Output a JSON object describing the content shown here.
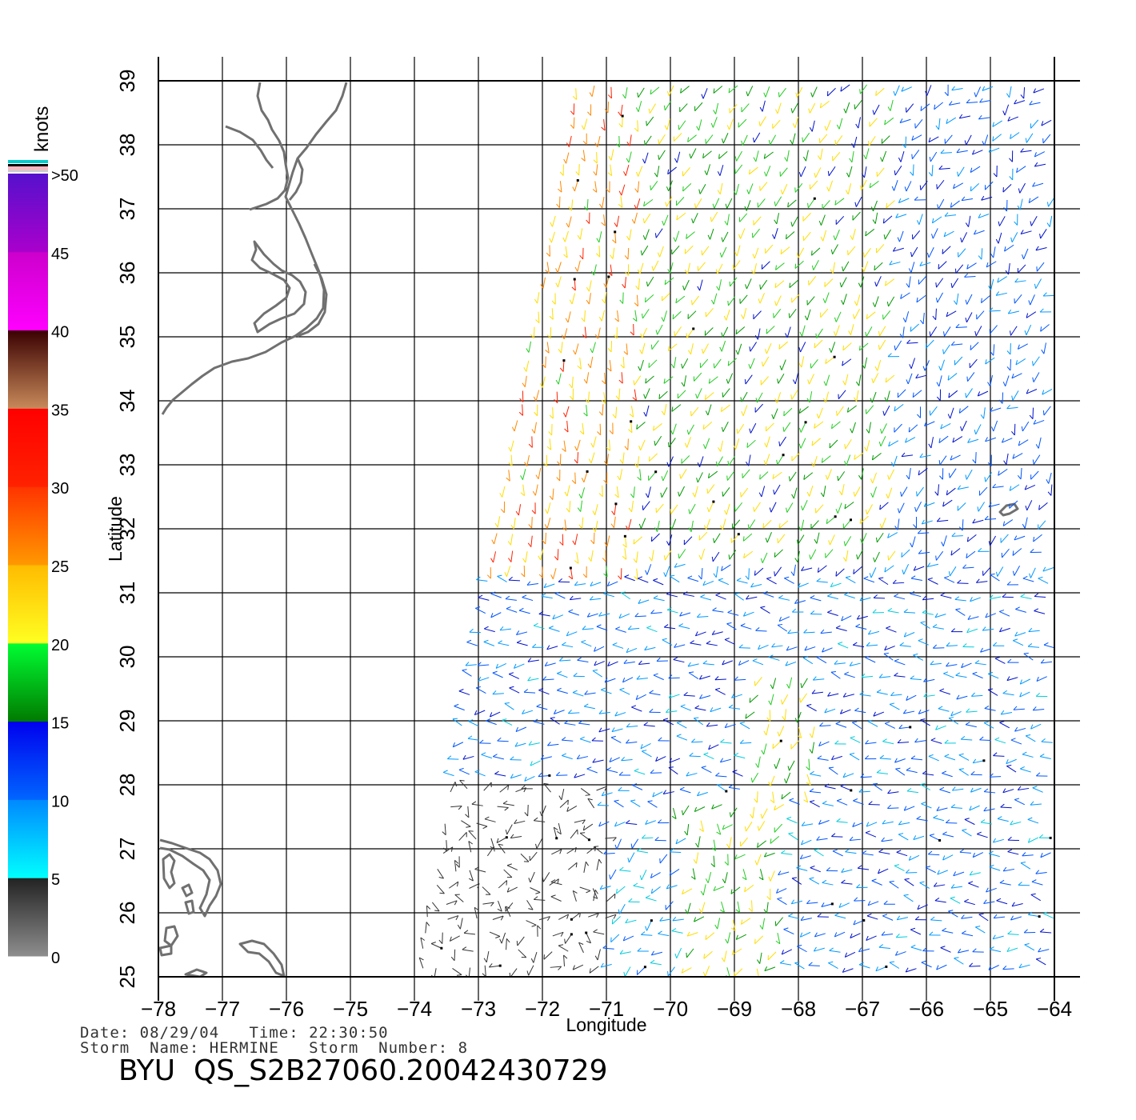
{
  "colorbar": {
    "unit_label": "knots",
    "segments": [
      {
        "min": 0,
        "max": 5,
        "colors": [
          "#8e8e8e",
          "#222222"
        ]
      },
      {
        "min": 5,
        "max": 10,
        "colors": [
          "#00ffff",
          "#0088ff"
        ]
      },
      {
        "min": 10,
        "max": 15,
        "colors": [
          "#0066ff",
          "#0000ee"
        ]
      },
      {
        "min": 15,
        "max": 20,
        "colors": [
          "#007a00",
          "#00ff33"
        ]
      },
      {
        "min": 20,
        "max": 25,
        "colors": [
          "#ffff22",
          "#ffbb00"
        ]
      },
      {
        "min": 25,
        "max": 30,
        "colors": [
          "#ff9900",
          "#ff3300"
        ]
      },
      {
        "min": 30,
        "max": 35,
        "colors": [
          "#ff2200",
          "#ff0000"
        ]
      },
      {
        "min": 35,
        "max": 40,
        "colors": [
          "#c88a5a",
          "#3a0000"
        ]
      },
      {
        "min": 40,
        "max": 45,
        "colors": [
          "#ff00ff",
          "#cc00cc"
        ]
      },
      {
        "min": 45,
        "max": 50,
        "colors": [
          "#aa00cc",
          "#5511cc"
        ]
      }
    ],
    "tick_labels": [
      "0",
      "5",
      "10",
      "15",
      "20",
      "25",
      "30",
      "35",
      "40",
      "45",
      ">50"
    ]
  },
  "map": {
    "lon_range": [
      -78,
      -64
    ],
    "lat_range": [
      25,
      39
    ],
    "lon_ticks": [
      "−78",
      "−77",
      "−76",
      "−75",
      "−74",
      "−73",
      "−72",
      "−71",
      "−70",
      "−69",
      "−68",
      "−67",
      "−66",
      "−65",
      "−64"
    ],
    "lat_ticks": [
      "25",
      "26",
      "27",
      "28",
      "29",
      "30",
      "31",
      "32",
      "33",
      "34",
      "35",
      "36",
      "37",
      "38",
      "39"
    ],
    "xlabel": "Longitude",
    "ylabel": "Latitude",
    "grid": true,
    "coastline_color": "#707070"
  },
  "footer": {
    "line1": "Date: 08/29/04   Time: 22:30:50",
    "line2": "Storm  Name: HERMINE   Storm  Number: 8",
    "title": "BYU  QS_S2B27060.20042430729"
  }
}
